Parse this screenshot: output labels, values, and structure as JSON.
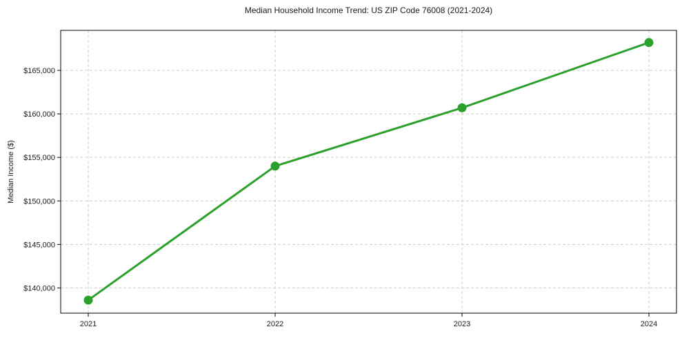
{
  "chart_data": {
    "type": "line",
    "title": "Median Household Income Trend: US ZIP Code 76008 (2021-2024)",
    "xlabel": "",
    "ylabel": "Median Income ($)",
    "categories": [
      "2021",
      "2022",
      "2023",
      "2024"
    ],
    "series": [
      {
        "name": "Median Household Income",
        "values": [
          138600,
          154000,
          160700,
          168200
        ]
      }
    ],
    "yticks": [
      {
        "value": 140000,
        "label": "$140,000"
      },
      {
        "value": 145000,
        "label": "$145,000"
      },
      {
        "value": 150000,
        "label": "$150,000"
      },
      {
        "value": 155000,
        "label": "$155,000"
      },
      {
        "value": 160000,
        "label": "$160,000"
      },
      {
        "value": 165000,
        "label": "$165,000"
      }
    ],
    "ylim": [
      137100,
      169600
    ],
    "grid": true,
    "grid_style": "dashed",
    "legend": "none",
    "marker": "circle",
    "colors": {
      "line": "#2ca02c",
      "marker": "#2ca02c",
      "grid": "#cccccc",
      "spine": "#000000",
      "text": "#1a1a1a",
      "background": "#ffffff"
    }
  }
}
